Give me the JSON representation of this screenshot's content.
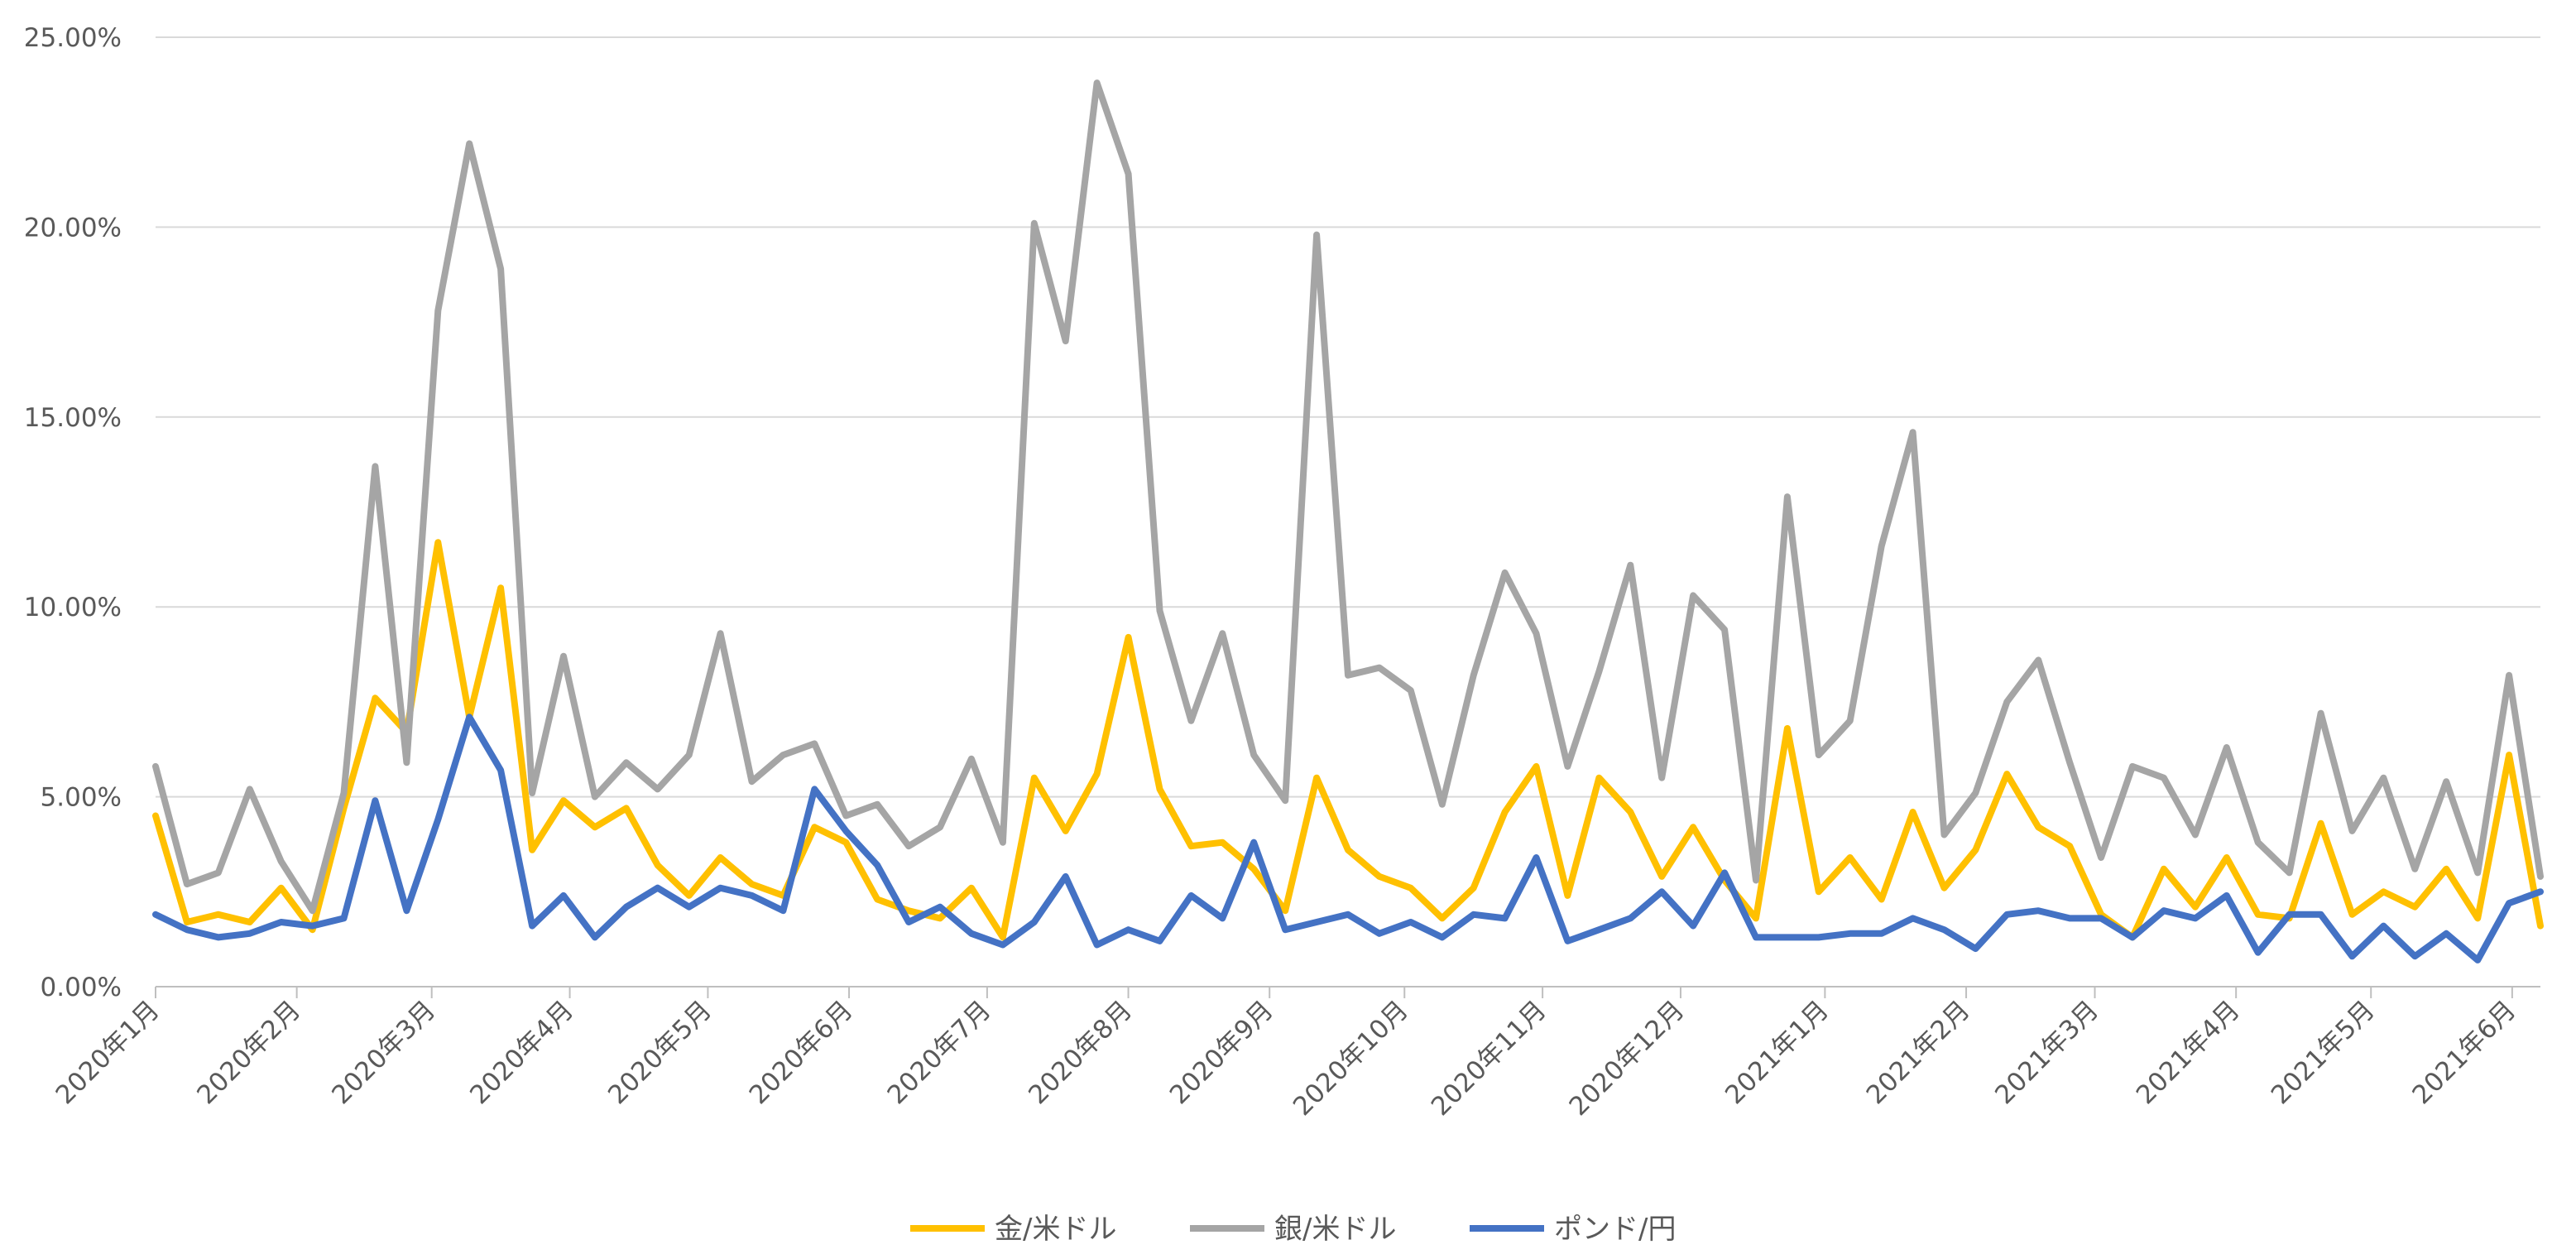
{
  "chart_data": {
    "type": "line",
    "title": "",
    "xlabel": "",
    "ylabel": "",
    "ylim": [
      0,
      0.25
    ],
    "y_ticks": [
      "0.00%",
      "5.00%",
      "10.00%",
      "15.00%",
      "20.00%",
      "25.00%"
    ],
    "x_tick_labels": [
      "2020年1月",
      "2020年2月",
      "2020年3月",
      "2020年4月",
      "2020年5月",
      "2020年6月",
      "2020年7月",
      "2020年8月",
      "2020年9月",
      "2020年10月",
      "2020年11月",
      "2020年12月",
      "2021年1月",
      "2021年2月",
      "2021年3月",
      "2021年4月",
      "2021年5月",
      "2021年6月"
    ],
    "x_tick_index": [
      0,
      4.5,
      8.8,
      13.2,
      17.6,
      22.1,
      26.5,
      31.0,
      35.5,
      39.8,
      44.2,
      48.6,
      53.2,
      57.7,
      61.8,
      66.3,
      70.6,
      75.1
    ],
    "grid": "horizontal",
    "legend_position": "bottom",
    "series": [
      {
        "name": "金/米ドル",
        "color": "#FFC000",
        "values": [
          0.045,
          0.017,
          0.019,
          0.017,
          0.026,
          0.015,
          0.047,
          0.076,
          0.067,
          0.117,
          0.071,
          0.105,
          0.036,
          0.049,
          0.042,
          0.047,
          0.032,
          0.024,
          0.034,
          0.027,
          0.024,
          0.042,
          0.038,
          0.023,
          0.02,
          0.018,
          0.026,
          0.013,
          0.055,
          0.041,
          0.056,
          0.092,
          0.052,
          0.037,
          0.038,
          0.031,
          0.02,
          0.055,
          0.036,
          0.029,
          0.026,
          0.018,
          0.026,
          0.046,
          0.058,
          0.024,
          0.055,
          0.046,
          0.029,
          0.042,
          0.028,
          0.018,
          0.068,
          0.025,
          0.034,
          0.023,
          0.046,
          0.026,
          0.036,
          0.056,
          0.042,
          0.037,
          0.019,
          0.013,
          0.031,
          0.021,
          0.034,
          0.019,
          0.018,
          0.043,
          0.019,
          0.025,
          0.021,
          0.031,
          0.018,
          0.061,
          0.016
        ]
      },
      {
        "name": "銀/米ドル",
        "color": "#A5A5A5",
        "values": [
          0.058,
          0.027,
          0.03,
          0.052,
          0.033,
          0.02,
          0.051,
          0.137,
          0.059,
          0.178,
          0.222,
          0.189,
          0.051,
          0.087,
          0.05,
          0.059,
          0.052,
          0.061,
          0.093,
          0.054,
          0.061,
          0.064,
          0.045,
          0.048,
          0.037,
          0.042,
          0.06,
          0.038,
          0.201,
          0.17,
          0.238,
          0.214,
          0.099,
          0.07,
          0.093,
          0.061,
          0.049,
          0.198,
          0.082,
          0.084,
          0.078,
          0.048,
          0.082,
          0.109,
          0.093,
          0.058,
          0.083,
          0.111,
          0.055,
          0.103,
          0.094,
          0.028,
          0.129,
          0.061,
          0.07,
          0.116,
          0.146,
          0.04,
          0.051,
          0.075,
          0.086,
          0.059,
          0.034,
          0.058,
          0.055,
          0.04,
          0.063,
          0.038,
          0.03,
          0.072,
          0.041,
          0.055,
          0.031,
          0.054,
          0.03,
          0.082,
          0.029
        ]
      },
      {
        "name": "ポンド/円",
        "color": "#4472C4",
        "values": [
          0.019,
          0.015,
          0.013,
          0.014,
          0.017,
          0.016,
          0.018,
          0.049,
          0.02,
          0.044,
          0.071,
          0.057,
          0.016,
          0.024,
          0.013,
          0.021,
          0.026,
          0.021,
          0.026,
          0.024,
          0.02,
          0.052,
          0.041,
          0.032,
          0.017,
          0.021,
          0.014,
          0.011,
          0.017,
          0.029,
          0.011,
          0.015,
          0.012,
          0.024,
          0.018,
          0.038,
          0.015,
          0.017,
          0.019,
          0.014,
          0.017,
          0.013,
          0.019,
          0.018,
          0.034,
          0.012,
          0.015,
          0.018,
          0.025,
          0.016,
          0.03,
          0.013,
          0.013,
          0.013,
          0.014,
          0.014,
          0.018,
          0.015,
          0.01,
          0.019,
          0.02,
          0.018,
          0.018,
          0.013,
          0.02,
          0.018,
          0.024,
          0.009,
          0.019,
          0.019,
          0.008,
          0.016,
          0.008,
          0.014,
          0.007,
          0.022,
          0.025
        ]
      }
    ]
  }
}
